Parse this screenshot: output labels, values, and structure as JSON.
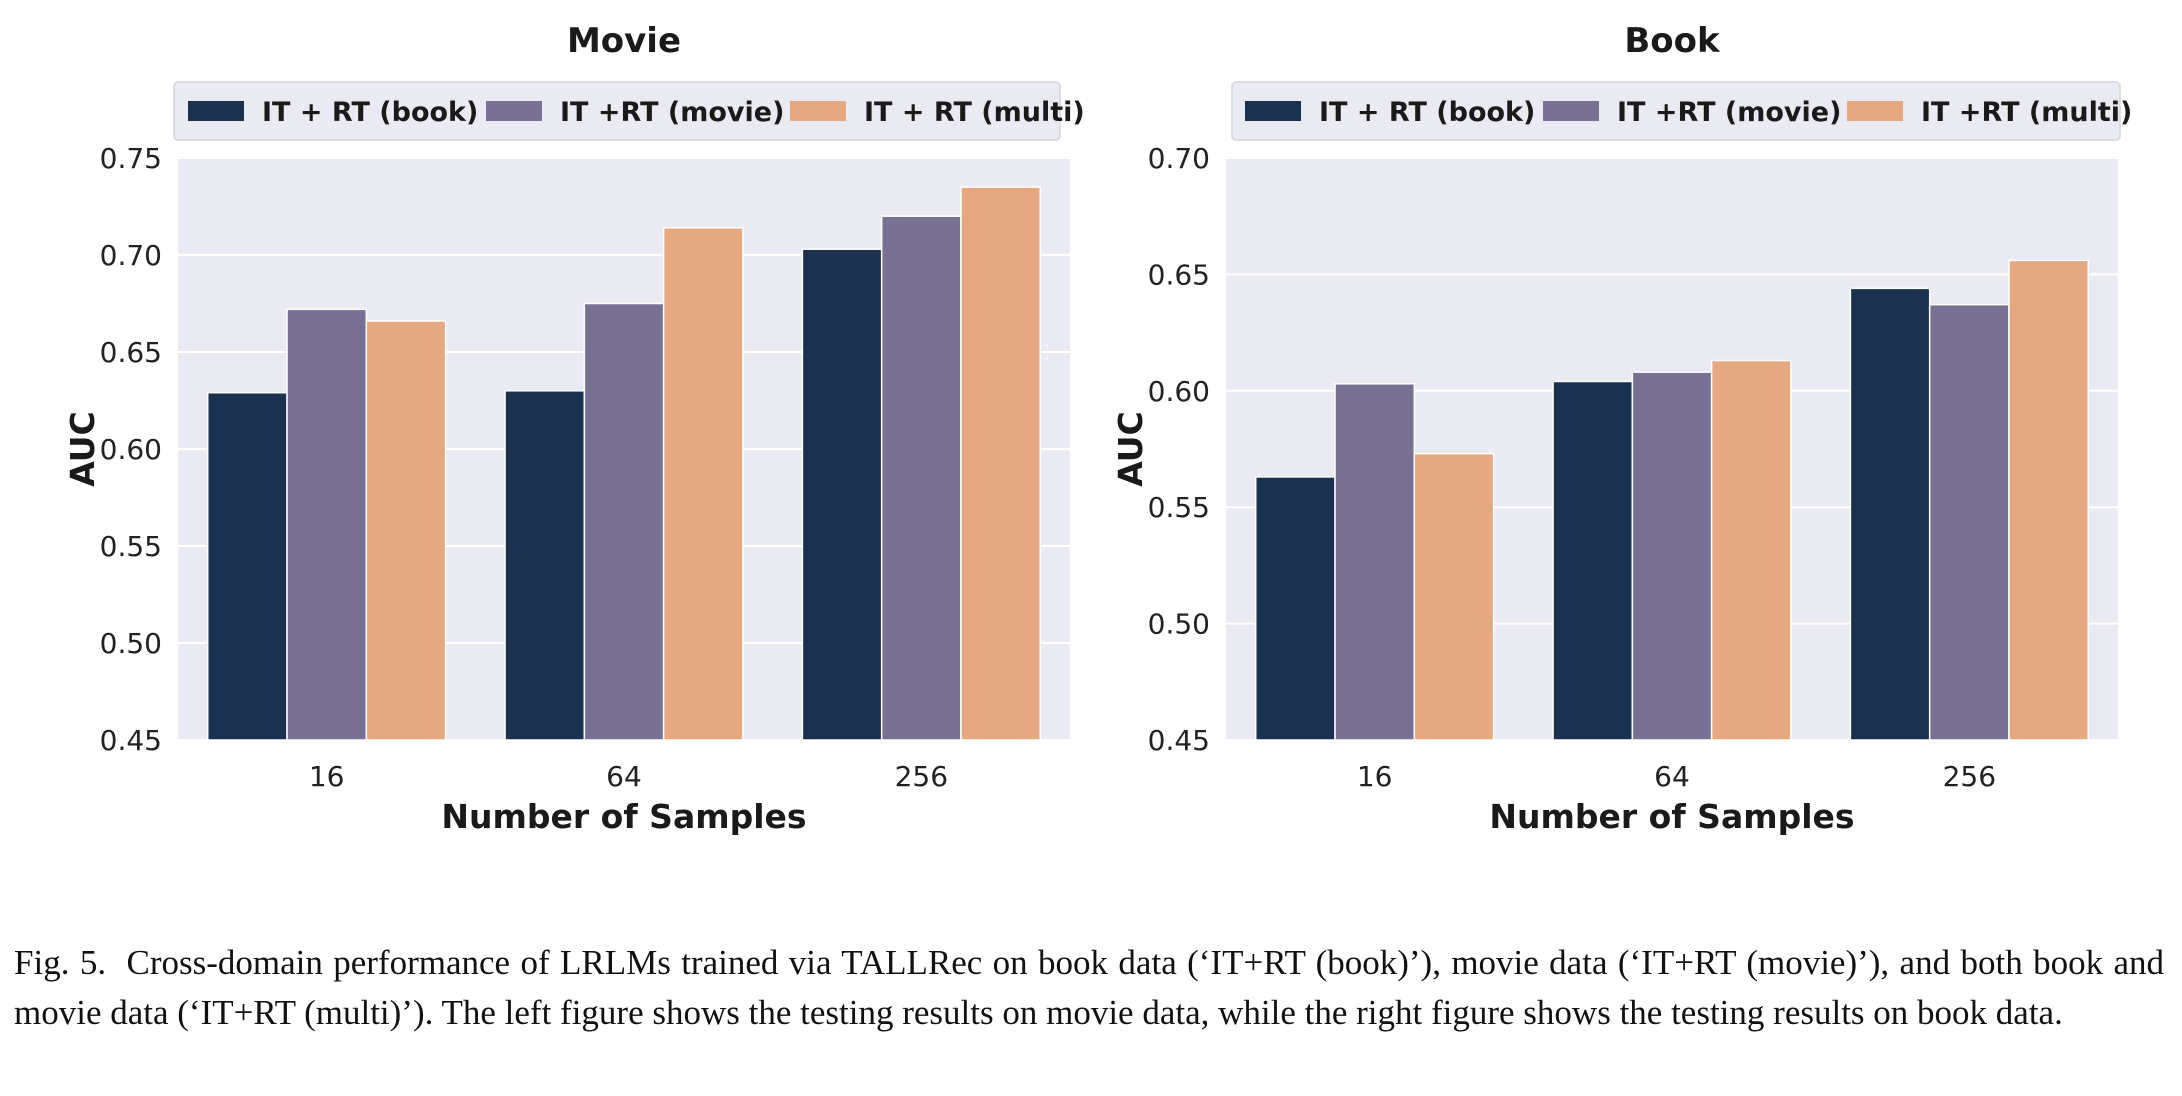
{
  "chart_data": [
    {
      "type": "bar",
      "title": "Movie",
      "xlabel": "Number of Samples",
      "ylabel": "AUC",
      "categories": [
        "16",
        "64",
        "256"
      ],
      "ylim": [
        0.45,
        0.75
      ],
      "yticks": [
        "0.45",
        "0.50",
        "0.55",
        "0.60",
        "0.65",
        "0.70",
        "0.75"
      ],
      "grid": true,
      "legend_position": "top",
      "series": [
        {
          "name": "IT + RT (book)",
          "color": "#1b3150",
          "values": [
            0.629,
            0.63,
            0.703
          ]
        },
        {
          "name": "IT +RT (movie)",
          "color": "#787194",
          "values": [
            0.672,
            0.675,
            0.72
          ]
        },
        {
          "name": "IT + RT (multi)",
          "color": "#e6a880",
          "values": [
            0.666,
            0.714,
            0.735
          ]
        }
      ]
    },
    {
      "type": "bar",
      "title": "Book",
      "xlabel": "Number of Samples",
      "ylabel": "AUC",
      "categories": [
        "16",
        "64",
        "256"
      ],
      "ylim": [
        0.45,
        0.7
      ],
      "yticks": [
        "0.45",
        "0.50",
        "0.55",
        "0.60",
        "0.65",
        "0.70"
      ],
      "grid": true,
      "legend_position": "top",
      "series": [
        {
          "name": "IT + RT (book)",
          "color": "#1b3150",
          "values": [
            0.563,
            0.604,
            0.644
          ]
        },
        {
          "name": "IT +RT (movie)",
          "color": "#787194",
          "values": [
            0.603,
            0.608,
            0.637
          ]
        },
        {
          "name": "IT +RT (multi)",
          "color": "#e6a880",
          "values": [
            0.573,
            0.613,
            0.656
          ]
        }
      ]
    }
  ],
  "caption": {
    "label": "Fig. 5.",
    "text": "Cross-domain performance of LRLMs trained via TALLRec on book data (‘IT+RT (book)’), movie data (‘IT+RT (movie)’), and both book and movie data (‘IT+RT (multi)’). The left figure shows the testing results on movie data, while the right figure shows the testing results on book data."
  }
}
